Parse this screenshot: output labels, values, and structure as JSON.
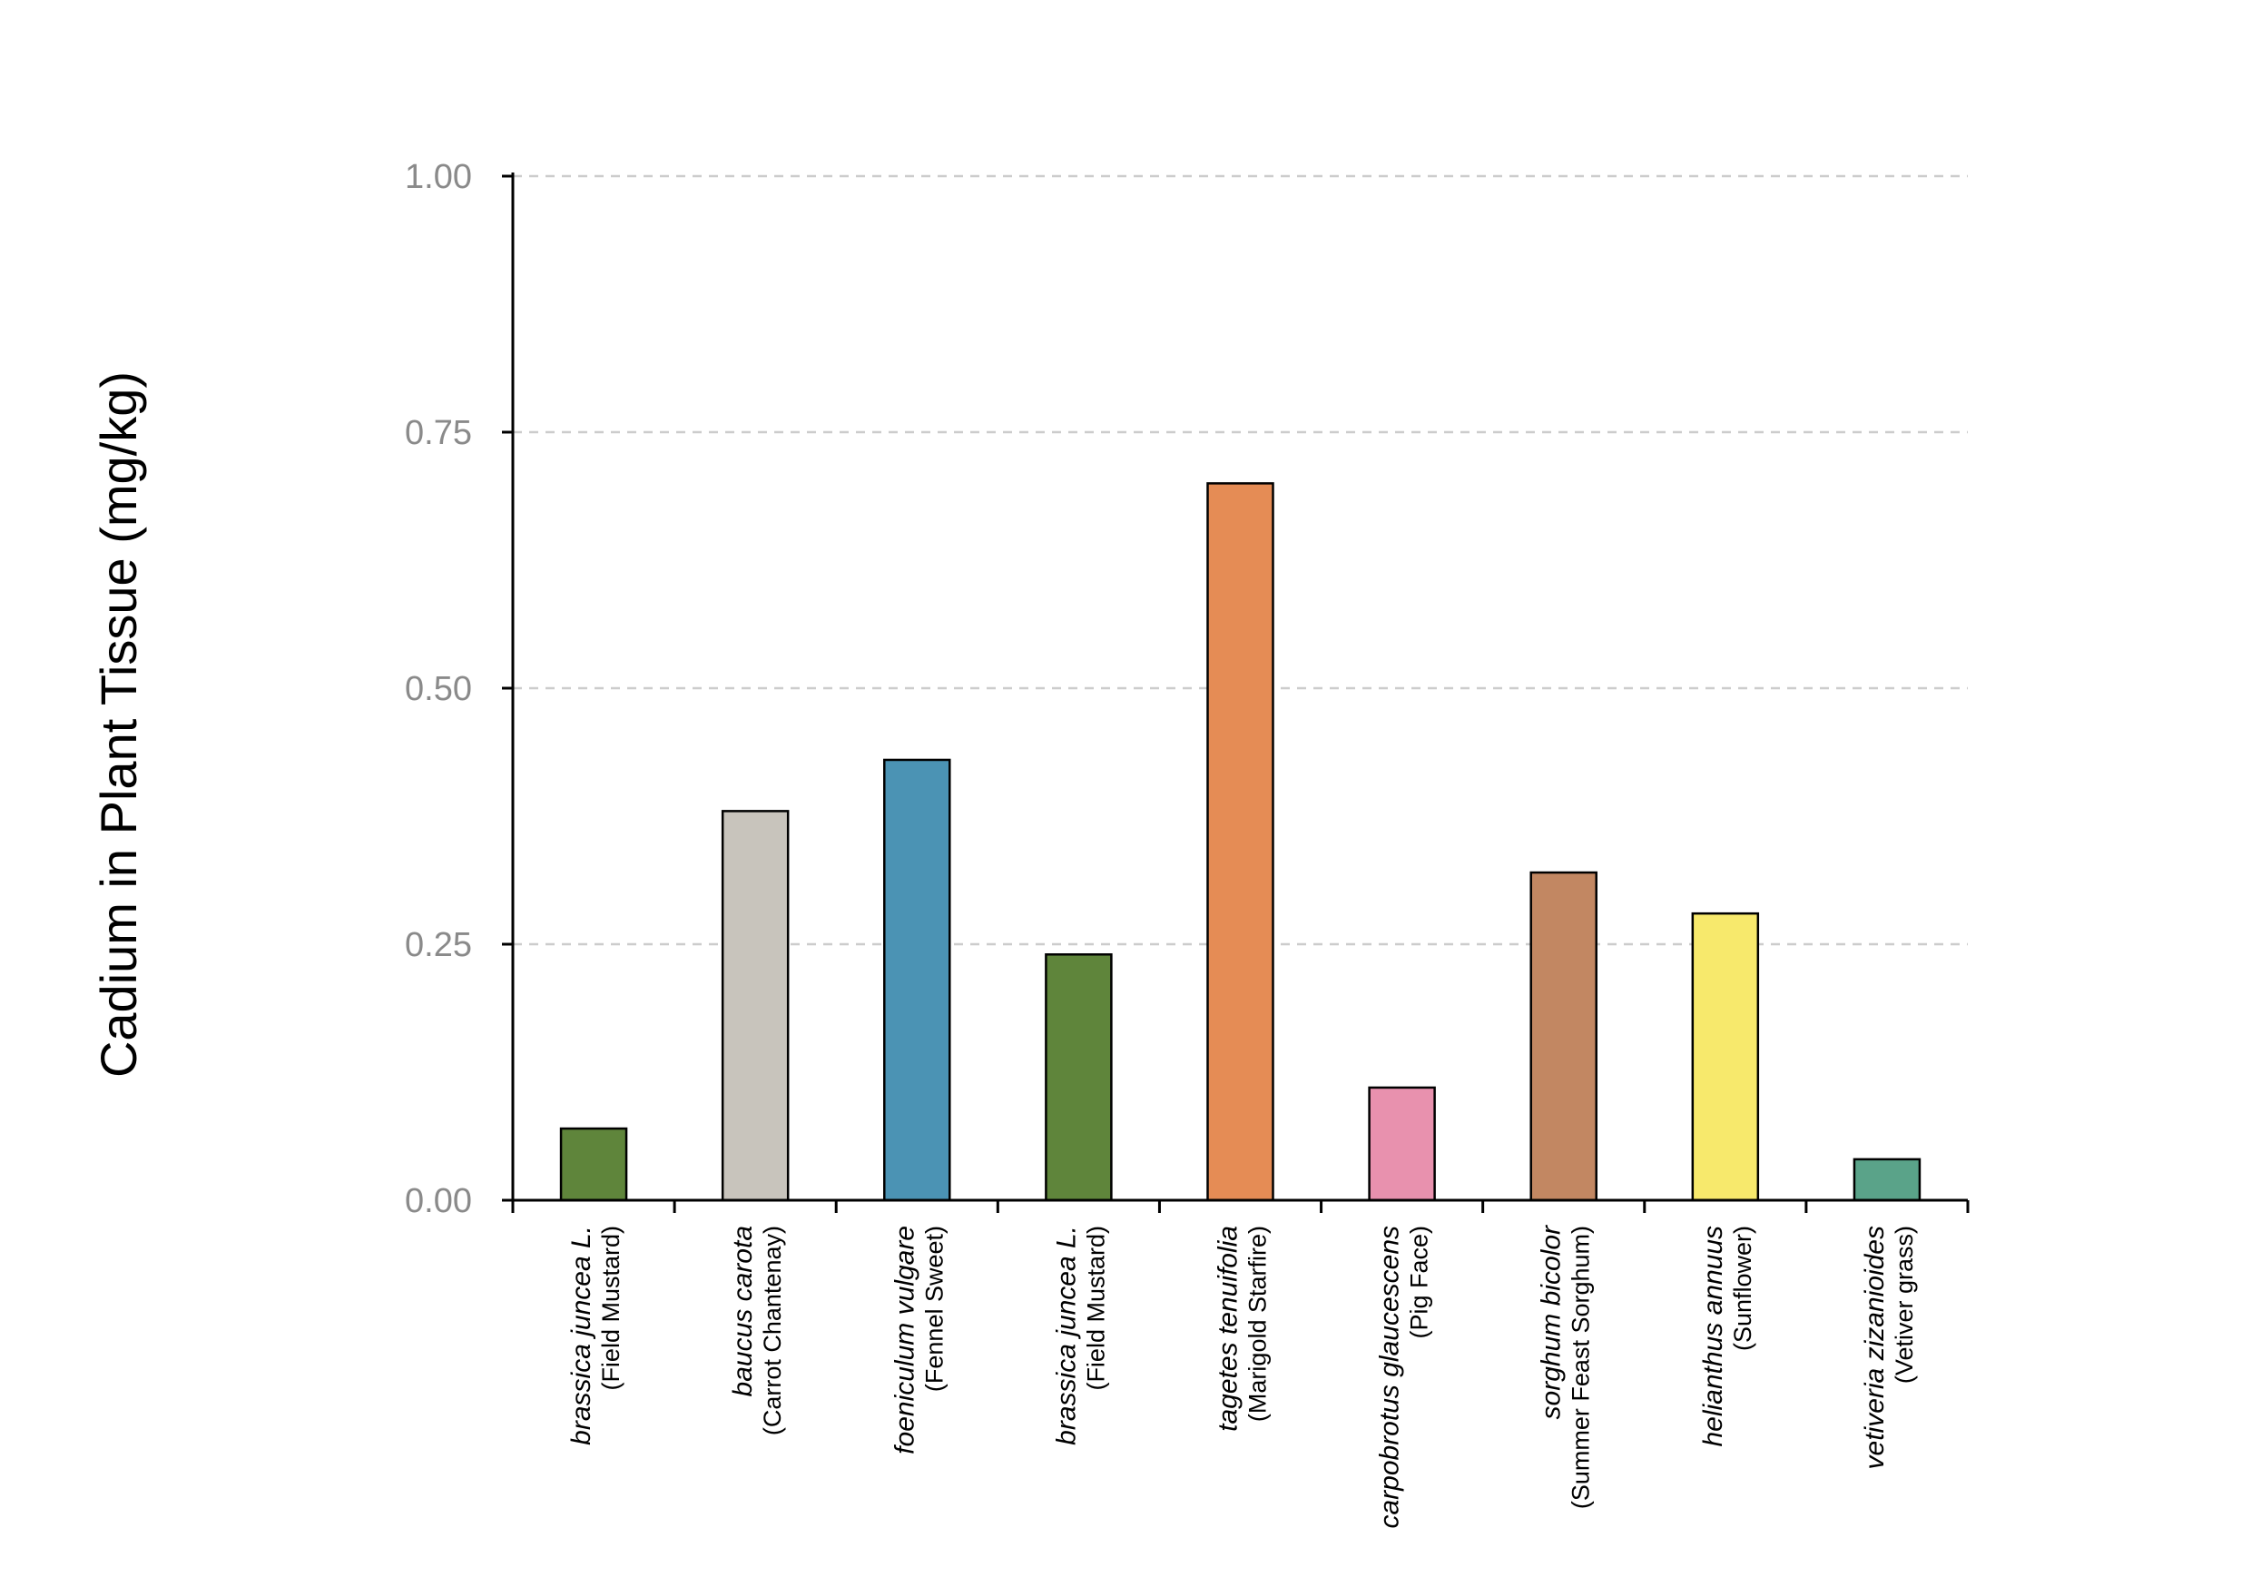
{
  "chart_data": {
    "type": "bar",
    "title": "",
    "xlabel": "",
    "ylabel": "Cadium in Plant Tissue (mg/kg)",
    "ylim": [
      0,
      1
    ],
    "yticks": [
      "0.00",
      "0.25",
      "0.50",
      "0.75",
      "1.00"
    ],
    "grid": "horizontal-dashed",
    "legend": "none",
    "categories": [
      {
        "scientific": "brassica juncea L.",
        "common": "(Field Mustard)"
      },
      {
        "scientific": "baucus carota",
        "common": "(Carrot Chantenay)"
      },
      {
        "scientific": "foeniculum vulgare",
        "common": "(Fennel Sweet)"
      },
      {
        "scientific": "brassica juncea L.",
        "common": "(Field Mustard)"
      },
      {
        "scientific": "tagetes tenuifolia",
        "common": "(Marigold Starfire)"
      },
      {
        "scientific": "carpobrotus glaucescens",
        "common": "(Pig Face)"
      },
      {
        "scientific": "sorghum bicolor",
        "common": "(Summer Feast Sorghum)"
      },
      {
        "scientific": "helianthus annuus",
        "common": "(Sunflower)"
      },
      {
        "scientific": "vetiveria zizanioides",
        "common": "(Vetiver grass)"
      }
    ],
    "values": [
      0.07,
      0.38,
      0.43,
      0.24,
      0.7,
      0.11,
      0.32,
      0.28,
      0.04
    ],
    "colors": [
      "#5f853b",
      "#c8c4bc",
      "#4b93b4",
      "#5f853b",
      "#e58c55",
      "#e891ae",
      "#c28762",
      "#f7e96c",
      "#5aa389"
    ]
  }
}
